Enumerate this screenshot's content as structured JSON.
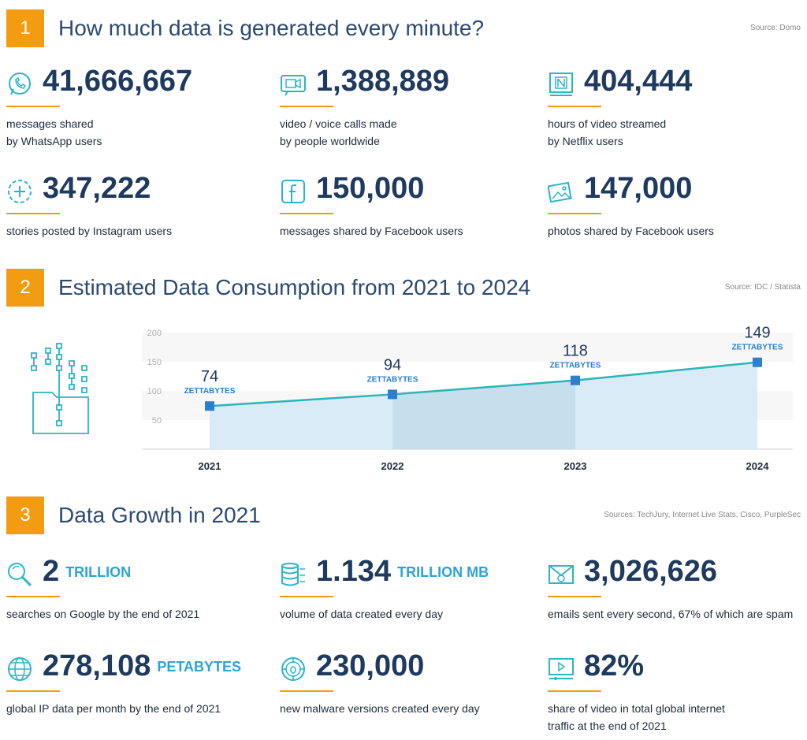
{
  "section1": {
    "number": "1",
    "title": "How much data is generated every minute?",
    "source": "Source: Domo",
    "stats": [
      {
        "icon": "whatsapp-icon",
        "value": "41,666,667",
        "desc": "messages shared\nby WhatsApp users"
      },
      {
        "icon": "video-call-icon",
        "value": "1,388,889",
        "desc": "video / voice calls made\nby people worldwide"
      },
      {
        "icon": "netflix-icon",
        "value": "404,444",
        "desc": "hours of video streamed\nby Netflix users"
      },
      {
        "icon": "instagram-story-icon",
        "value": "347,222",
        "desc": "stories posted by Instagram users"
      },
      {
        "icon": "facebook-icon",
        "value": "150,000",
        "desc": "messages shared by Facebook users"
      },
      {
        "icon": "photo-icon",
        "value": "147,000",
        "desc": "photos shared by Facebook users"
      }
    ]
  },
  "section2": {
    "number": "2",
    "title": "Estimated Data Consumption from 2021 to 2024",
    "source": "Source: IDC / Statista"
  },
  "chart_data": {
    "type": "area",
    "categories": [
      "2021",
      "2022",
      "2023",
      "2024"
    ],
    "values": [
      74,
      94,
      118,
      149
    ],
    "data_label_unit": "ZETTABYTES",
    "ylim": [
      0,
      200
    ],
    "yticks": [
      50,
      100,
      150,
      200
    ],
    "grid": false,
    "colors": {
      "line": "#2bb5b8",
      "fill": "#d4e9f5",
      "marker": "#2a7fd0"
    }
  },
  "section3": {
    "number": "3",
    "title": "Data Growth in 2021",
    "source": "Sources: TechJury, Internet Live Stats, Cisco, PurpleSec",
    "stats": [
      {
        "icon": "search-icon",
        "value": "2",
        "unit": "TRILLION",
        "desc": "searches on Google by the end of 2021"
      },
      {
        "icon": "database-icon",
        "value": "1.134",
        "unit": "TRILLION MB",
        "desc": "volume of data created every day"
      },
      {
        "icon": "email-icon",
        "value": "3,026,626",
        "unit": "",
        "desc": "emails sent every second, 67% of which are spam"
      },
      {
        "icon": "globe-icon",
        "value": "278,108",
        "unit": "PETABYTES",
        "desc": "global IP data per month by the end of 2021"
      },
      {
        "icon": "malware-icon",
        "value": "230,000",
        "unit": "",
        "desc": "new malware versions created every day"
      },
      {
        "icon": "video-player-icon",
        "value": "82%",
        "unit": "",
        "desc": "share of video in total global internet\ntraffic at the end of 2021"
      }
    ]
  },
  "colors": {
    "accent": "#f39c12",
    "title": "#2c4a73",
    "value": "#1e3a5f",
    "unit": "#2fa3d8",
    "icon": "#2bb5c8"
  }
}
